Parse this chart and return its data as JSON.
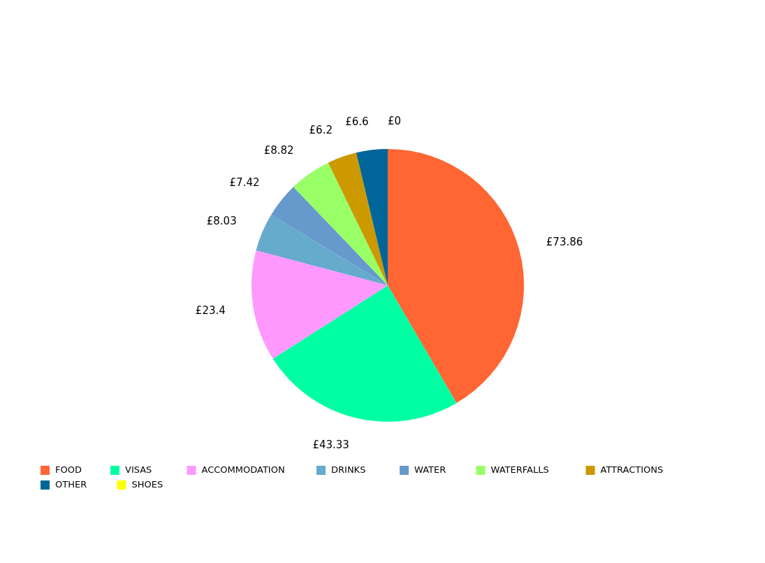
{
  "chart_data": {
    "type": "pie",
    "categories": [
      "FOOD",
      "VISAS",
      "ACCOMMODATION",
      "DRINKS",
      "WATER",
      "WATERFALLS",
      "ATTRACTIONS",
      "OTHER",
      "SHOES"
    ],
    "values": [
      73.86,
      43.33,
      23.4,
      8.03,
      7.42,
      8.82,
      6.2,
      6.6,
      0
    ],
    "value_labels": [
      "£73.86",
      "£43.33",
      "£23.4",
      "£8.03",
      "£7.42",
      "£8.82",
      "£6.2",
      "£6.6",
      "£0"
    ],
    "colors": [
      "#ff6633",
      "#00ffa2",
      "#ff99ff",
      "#66aacc",
      "#6699cc",
      "#99ff66",
      "#cc9900",
      "#006699",
      "#ffff00"
    ],
    "legend": "bottom"
  }
}
